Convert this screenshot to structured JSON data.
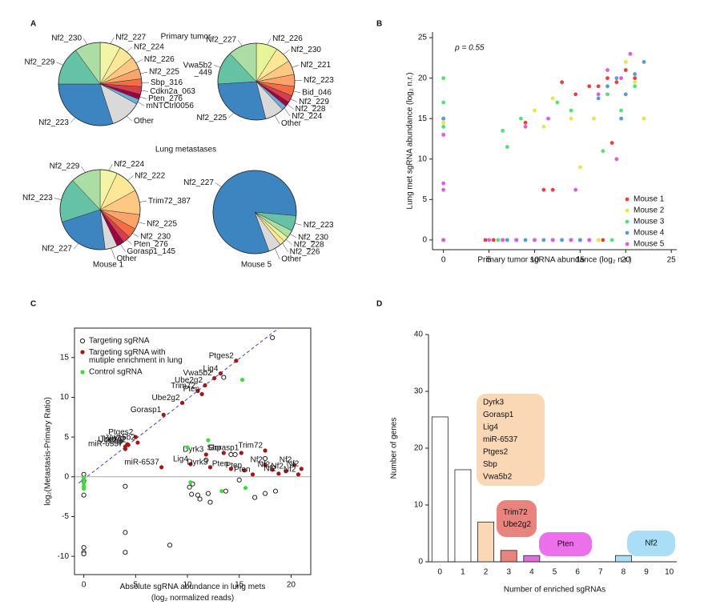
{
  "panel_labels": [
    "A",
    "B",
    "C",
    "D"
  ],
  "panel_a": {
    "row_titles": [
      "Primary tumor",
      "Lung metastases"
    ],
    "column_titles": [
      "Mouse 1",
      "Mouse 5"
    ]
  },
  "chart_data": [
    {
      "type": "pie",
      "labels": [
        "Nf2_227",
        "Nf2_224",
        "Nf2_226",
        "Nf2_225",
        "Sbp_316",
        "Cdkn2a_063",
        "Pten_276",
        "mNTCtrl0056",
        "Other",
        "Nf2_223",
        "Nf2_229",
        "Nf2_230"
      ],
      "values": [
        8,
        6,
        5,
        4,
        3,
        3,
        2,
        2,
        12,
        30,
        15,
        10
      ],
      "colors": [
        "#f2f5a6",
        "#fee797",
        "#fdc982",
        "#fca46a",
        "#f46d43",
        "#d53e4f",
        "#9e0142",
        "#6baed6",
        "#d9d9d9",
        "#3d85c0",
        "#66c2a5",
        "#abdda4"
      ]
    },
    {
      "type": "pie",
      "labels": [
        "Nf2_226",
        "Nf2_230",
        "Nf2_221",
        "Nf2_223",
        "Bid_046",
        "Nf2_229",
        "Nf2_228",
        "Nf2_224",
        "Other",
        "Nf2_225",
        "Vwa5b2\n_449",
        "Nf2_227"
      ],
      "values": [
        9,
        7,
        6,
        5,
        4,
        3,
        2,
        2,
        8,
        28,
        14,
        12
      ],
      "colors": [
        "#e6f598",
        "#fee797",
        "#fdc982",
        "#fca46a",
        "#f46d43",
        "#d53e4f",
        "#9e0142",
        "#6baed6",
        "#d9d9d9",
        "#3d85c0",
        "#66c2a5",
        "#abdda4"
      ]
    },
    {
      "type": "pie",
      "labels": [
        "Nf2_224",
        "Nf2_222",
        "Trim72_387",
        "Nf2_225",
        "Nf2_230",
        "Pten_276",
        "Gorasp1_145",
        "Other",
        "Nf2_227",
        "Nf2_223",
        "Nf2_229"
      ],
      "values": [
        7,
        10,
        10,
        6,
        4,
        3,
        3,
        5,
        22,
        18,
        12
      ],
      "colors": [
        "#f2f5a6",
        "#fee797",
        "#fdc982",
        "#fca46a",
        "#f46d43",
        "#d53e4f",
        "#9e0142",
        "#d9d9d9",
        "#3d85c0",
        "#66c2a5",
        "#abdda4"
      ]
    },
    {
      "type": "pie",
      "labels": [
        "Nf2_223",
        "Nf2_230",
        "Nf2_228",
        "Nf2_226",
        "Other",
        "Nf2_227"
      ],
      "values": [
        6,
        3,
        2,
        2,
        5,
        82
      ],
      "colors": [
        "#66c2a5",
        "#abdda4",
        "#e6f598",
        "#fee797",
        "#d9d9d9",
        "#3d85c0"
      ]
    },
    {
      "type": "scatter",
      "xlabel": "Primary tumor sgRNA abundance (log₂ n.r.)",
      "ylabel": "Lung met sgRNA abundance (log₂ n.r.)",
      "annotation": "ρ = 0.55",
      "xlim": [
        -1.2,
        25.6
      ],
      "ylim": [
        -1.2,
        25.7
      ],
      "xticks": [
        0,
        5,
        10,
        15,
        20,
        25
      ],
      "yticks": [
        0,
        5,
        10,
        15,
        20,
        25
      ],
      "legend_position": "lower right",
      "series": [
        {
          "name": "Mouse 1",
          "color": "#e8413c",
          "marker": "filled",
          "x": [
            0,
            0,
            4.6,
            5.5,
            6.5,
            8,
            12,
            14,
            16,
            17.5,
            9,
            13,
            14.5,
            17,
            18,
            19,
            20,
            21,
            18.5,
            16,
            11,
            12
          ],
          "y": [
            15,
            0,
            0,
            0,
            0,
            0,
            0,
            0,
            0,
            0,
            14.5,
            19.5,
            18,
            19,
            20,
            19.5,
            21,
            20,
            12,
            19,
            6.2,
            6.2
          ]
        },
        {
          "name": "Mouse 2",
          "color": "#e6e64a",
          "marker": "filled",
          "x": [
            0,
            5,
            7,
            9,
            13,
            16,
            17,
            10,
            12,
            14,
            16.5,
            18,
            19.5,
            21,
            22,
            20,
            15,
            11
          ],
          "y": [
            14.5,
            0,
            0,
            0,
            0,
            0,
            0,
            16,
            17.5,
            15,
            15,
            18,
            20,
            19.5,
            15,
            22,
            9,
            14
          ]
        },
        {
          "name": "Mouse 3",
          "color": "#55e07a",
          "marker": "filled",
          "x": [
            0,
            0,
            0,
            6,
            8,
            10,
            12,
            15,
            18.5,
            6.5,
            7,
            8.5,
            12.5,
            14,
            18,
            19.5,
            21,
            17.5
          ],
          "y": [
            20,
            17,
            14,
            0,
            0,
            0,
            0,
            0,
            0,
            13.5,
            11.5,
            15,
            17,
            16,
            18,
            16,
            19,
            11
          ]
        },
        {
          "name": "Mouse 4",
          "color": "#5b9bd5",
          "marker": "filled",
          "x": [
            0,
            0,
            7,
            9,
            11,
            13,
            15,
            16,
            17,
            18,
            19,
            20,
            21,
            22,
            19.5
          ],
          "y": [
            15,
            0,
            0,
            0,
            0,
            0,
            0,
            0,
            17.5,
            19,
            20,
            18,
            20.5,
            22,
            15
          ]
        },
        {
          "name": "Mouse 5",
          "color": "#d95fe0",
          "marker": "filled",
          "x": [
            0,
            0,
            0,
            0,
            8,
            10,
            12,
            14,
            16,
            5,
            6.5,
            9,
            11.5,
            14.5,
            17,
            18,
            19.5,
            20.5,
            19
          ],
          "y": [
            13,
            7,
            6.2,
            0,
            0,
            0,
            0,
            0,
            0,
            0,
            0,
            14,
            15,
            6.2,
            18,
            21,
            20,
            23,
            10
          ]
        }
      ]
    },
    {
      "type": "scatter",
      "xlabel": "Absolute sgRNA abundance in lung mets\n(log₂ normalized reads)",
      "ylabel": "log₂(Metastasis-Primary Ratio)",
      "xlim": [
        -0.9,
        21.9
      ],
      "ylim": [
        -12.3,
        18.7
      ],
      "xticks": [
        0,
        5,
        10,
        15,
        20
      ],
      "yticks": [
        -10,
        -5,
        0,
        5,
        10,
        15
      ],
      "legend_position": "upper left",
      "reference_line": {
        "x": [
          -0.5,
          18.8
        ],
        "y": [
          -0.8,
          18.7
        ]
      },
      "series": [
        {
          "name": "Targeting sgRNA",
          "color": "#222222",
          "marker": "open",
          "x": [
            18.2,
            13.5,
            0,
            0,
            0,
            0,
            0,
            0,
            4,
            4,
            4,
            8.3,
            10.2,
            10.4,
            11,
            11.2,
            12,
            12.2,
            13.7,
            15,
            16.5,
            17.5,
            18.5,
            10.5,
            11.8,
            14.2,
            14.6,
            17.5
          ],
          "y": [
            17.5,
            12.5,
            -2.3,
            -8.9,
            -9.5,
            -9.7,
            -0.5,
            0.3,
            -1.2,
            -7,
            -9.5,
            -8.6,
            -1.3,
            -2.2,
            -2.3,
            -2.8,
            -2.1,
            -3.2,
            -1.8,
            -0.4,
            -2.6,
            -2.1,
            -1.8,
            -0.9,
            2.1,
            2.8,
            2.8,
            2.3
          ]
        },
        {
          "name": "Targeting sgRNA with\nmutiple enrichment in lung",
          "color": "#a01818",
          "marker": "filled",
          "x": [
            14.7,
            13.2,
            12.6,
            11.7,
            11.0,
            11.4,
            9.5,
            7.7,
            5.0,
            4.2,
            4.0,
            5.2,
            4.3,
            4.0,
            7.5,
            10.3,
            11.8,
            13.5,
            15.2,
            17.5,
            12.2,
            14.2,
            15.5,
            16.3,
            17.5,
            18.2,
            18.8,
            19.5,
            20.3,
            21.0,
            20.7
          ],
          "y": [
            14.6,
            13.0,
            12.4,
            11.5,
            10.8,
            10.4,
            9.3,
            7.8,
            5.0,
            4.1,
            3.8,
            4.3,
            4.0,
            3.5,
            1.2,
            1.6,
            2.8,
            3.0,
            3.0,
            3.3,
            1.2,
            1.0,
            0.8,
            0.3,
            1.5,
            0.9,
            0.4,
            0.7,
            1.5,
            1.0,
            0.3
          ],
          "labels": [
            "Ptges2",
            "Lig4",
            "Vwa5b2",
            "Ube2g2",
            "Trim72",
            "Pten",
            "Ube2g2",
            "Gorasp1",
            "Ptges2",
            "Trim72",
            "Sbp",
            "Vwa5b2",
            "Ube2g2",
            "miR-6537",
            "miR-6537",
            "Lig4",
            "Dyrk3",
            "Sbp",
            "Gorasp1",
            "Trim72",
            "Dyrk3",
            "Pten",
            "Pten",
            "Pten",
            "Nf2",
            "Nf2",
            "Nf2",
            "Nf2",
            "Nf2",
            "Nf2",
            "Nf2"
          ]
        },
        {
          "name": "Control sgRNA",
          "color": "#3ddc3d",
          "marker": "filled",
          "x": [
            0,
            0,
            0,
            0,
            0,
            10,
            12,
            15.3,
            10.3,
            13.3,
            15.6
          ],
          "y": [
            -0.1,
            -0.3,
            -0.8,
            -1.2,
            -1.5,
            3.7,
            4.6,
            12.2,
            -0.7,
            -1.8,
            -1.4
          ]
        }
      ]
    },
    {
      "type": "bar",
      "xlabel": "Number of enriched sgRNAs",
      "ylabel": "Number of genes",
      "categories": [
        "0",
        "1",
        "2",
        "3",
        "4",
        "5",
        "6",
        "7",
        "8",
        "9",
        "10"
      ],
      "values": [
        25.5,
        16.2,
        7,
        2,
        1.1,
        0,
        0,
        0,
        1.1,
        0,
        0
      ],
      "colors": [
        "#ffffff",
        "#ffffff",
        "#fad7b5",
        "#e8847d",
        "#e06de0",
        "#ffffff",
        "#ffffff",
        "#ffffff",
        "#a9def6",
        "#ffffff",
        "#ffffff"
      ],
      "ylim": [
        0,
        40
      ],
      "yticks": [
        0,
        10,
        20,
        30,
        40
      ],
      "gene_groups": [
        {
          "color": "#fad7b5",
          "genes": [
            "Dyrk3",
            "Gorasp1",
            "Lig4",
            "miR-6537",
            "Ptges2",
            "Sbp",
            "Vwa5b2"
          ]
        },
        {
          "color": "#e8847d",
          "genes": [
            "Trim72",
            "Ube2g2"
          ]
        },
        {
          "color": "#ec6fec",
          "genes": [
            "Pten"
          ]
        },
        {
          "color": "#a9def6",
          "genes": [
            "Nf2"
          ]
        }
      ]
    }
  ]
}
